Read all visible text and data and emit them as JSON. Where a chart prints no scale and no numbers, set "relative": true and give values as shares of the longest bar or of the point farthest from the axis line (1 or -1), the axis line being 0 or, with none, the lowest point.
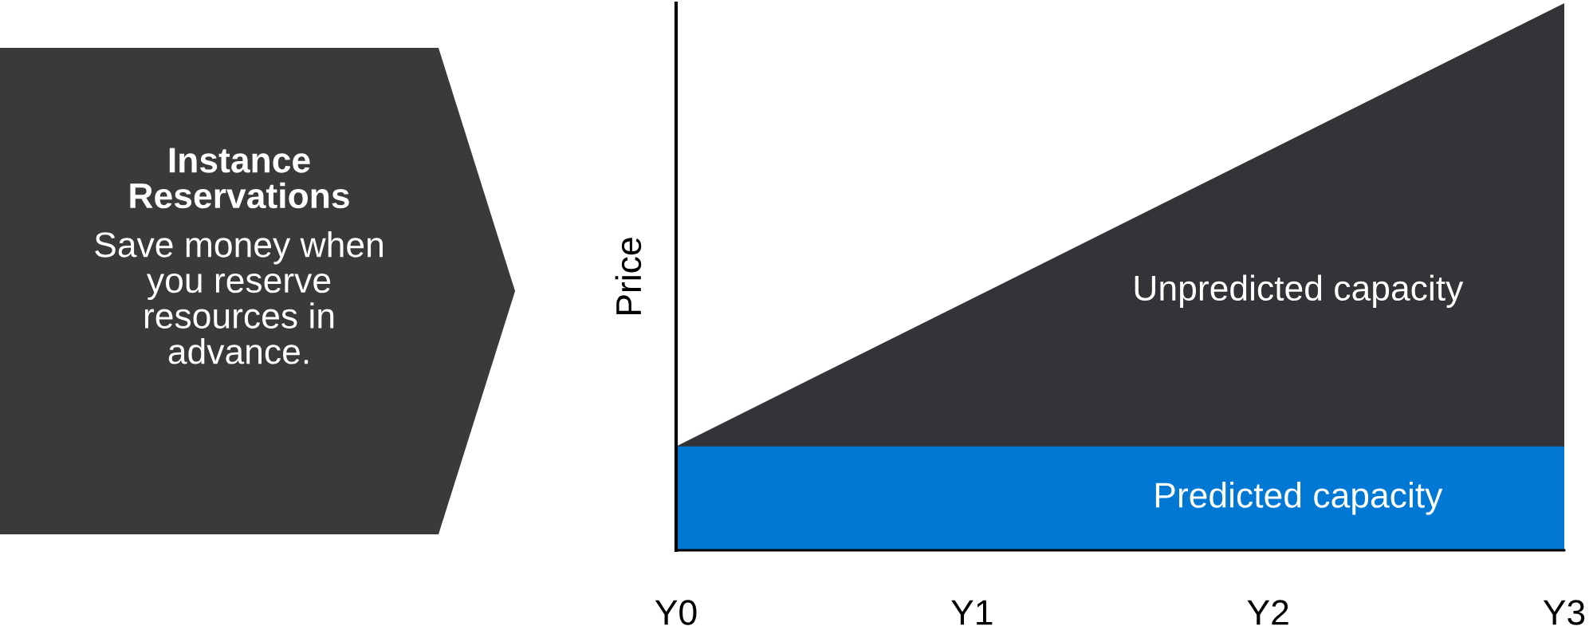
{
  "chart_data": [
    {
      "type": "other",
      "title": "Instance\nReservations",
      "subtitle": "Save money when\nyou reserve\nresources in\nadvance."
    },
    {
      "type": "area",
      "relative": true,
      "ylabel": "Price",
      "categories": [
        "Y0",
        "Y1",
        "Y2",
        "Y3"
      ],
      "legend": false,
      "grid": false,
      "series": [
        {
          "name": "Unpredicted capacity",
          "color": "#333338",
          "values": [
            0.19,
            0.46,
            0.73,
            1
          ]
        },
        {
          "name": "Predicted capacity",
          "color": "#0078d4",
          "values": [
            0.19,
            0.19,
            0.19,
            0.19
          ]
        }
      ]
    }
  ]
}
